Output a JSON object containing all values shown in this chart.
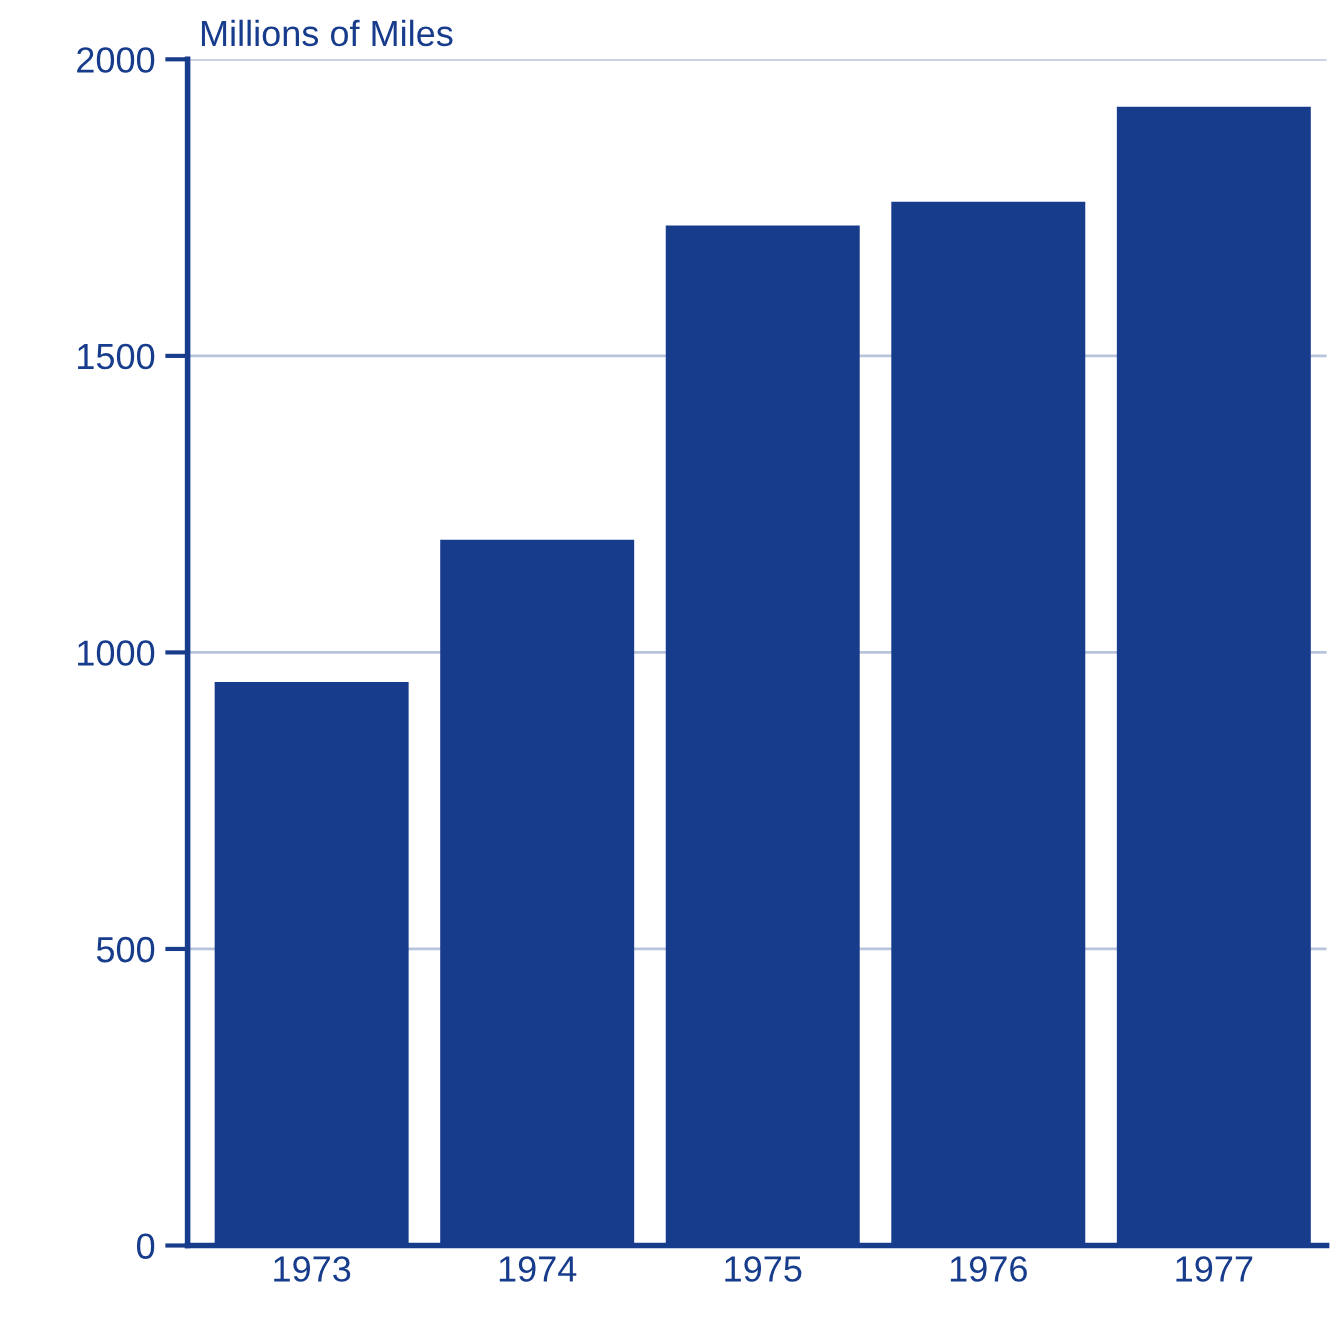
{
  "chart_data": {
    "type": "bar",
    "ylabel": "Millions of Miles",
    "categories": [
      "1973",
      "1974",
      "1975",
      "1976",
      "1977"
    ],
    "values": [
      950,
      1190,
      1720,
      1760,
      1920
    ],
    "color": "#183c8c",
    "ylim": [
      0,
      2000
    ],
    "yticks": [
      0,
      500,
      1000,
      1500,
      2000
    ],
    "grid": "y"
  }
}
